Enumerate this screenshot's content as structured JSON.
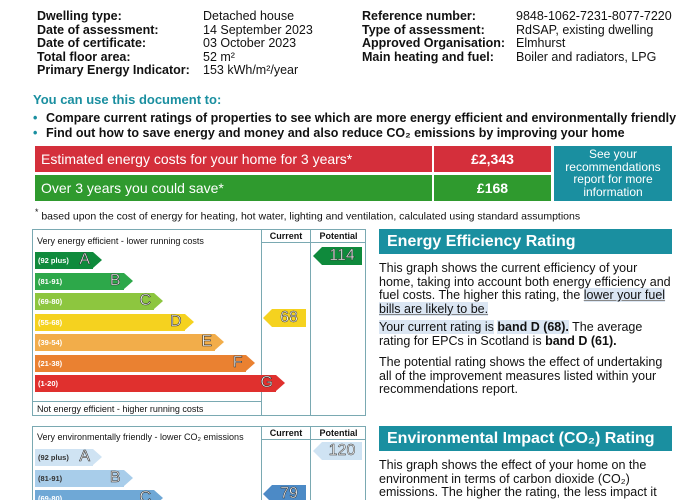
{
  "details_left": [
    {
      "label": "Dwelling type:",
      "value": "Detached house"
    },
    {
      "label": "Date of assessment:",
      "value": "14 September 2023"
    },
    {
      "label": "Date of certificate:",
      "value": "03 October 2023"
    },
    {
      "label": "Total floor area:",
      "value": "52 m²"
    },
    {
      "label": "Primary Energy Indicator:",
      "value": "153 kWh/m²/year"
    }
  ],
  "details_right": [
    {
      "label": "Reference number:",
      "value": "9848-1062-7231-8077-7220"
    },
    {
      "label": "Type of assessment:",
      "value": "RdSAP, existing dwelling"
    },
    {
      "label": "Approved Organisation:",
      "value": "Elmhurst"
    },
    {
      "label": "Main heating and fuel:",
      "value": "Boiler and radiators, LPG"
    }
  ],
  "use_heading": "You can use this document to:",
  "bullets": [
    "Compare current ratings of properties to see which are more energy efficient and environmentally friendly",
    "Find out how to save energy and money and also reduce CO₂ emissions by improving your home"
  ],
  "costs": {
    "estimated_label": "Estimated energy costs for your home for 3 years*",
    "estimated_value": "£2,343",
    "save_label": "Over 3 years you could save*",
    "save_value": "£168",
    "see_box": "See your recommendations report for more information",
    "footnote_star": "*",
    "footnote": "based upon the cost of energy for heating, hot water, lighting and ventilation, calculated using standard assumptions"
  },
  "efficiency_chart": {
    "top_label": "Very energy efficient - lower running costs",
    "bottom_label": "Not energy efficient - higher running costs",
    "current_header": "Current",
    "potential_header": "Potential",
    "bands": [
      {
        "range": "(92 plus)",
        "letter": "A",
        "color": "#0f8a3c"
      },
      {
        "range": "(81-91)",
        "letter": "B",
        "color": "#2da84a"
      },
      {
        "range": "(69-80)",
        "letter": "C",
        "color": "#8dc63f"
      },
      {
        "range": "(55-68)",
        "letter": "D",
        "color": "#f5d21f"
      },
      {
        "range": "(39-54)",
        "letter": "E",
        "color": "#f2ad4a"
      },
      {
        "range": "(21-38)",
        "letter": "F",
        "color": "#ea8131"
      },
      {
        "range": "(1-20)",
        "letter": "G",
        "color": "#e0302e"
      }
    ],
    "current_value": "68",
    "current_color": "#f5d21f",
    "potential_value": "114",
    "potential_color": "#0f8a3c"
  },
  "efficiency_panel": {
    "title": "Energy Efficiency Rating",
    "para1_a": "This graph shows the current efficiency of your home, taking into account both energy efficiency and fuel costs. The higher this rating, the",
    "para1_b": "lower your fuel bills are likely to be.",
    "para2_a": "Your current rating is",
    "para2_b": "band D (68).",
    "para2_c": "The average rating for EPCs in Scotland is",
    "para2_d": "band D (61).",
    "para3": "The potential rating shows the effect of undertaking all of the improvement measures listed within your recommendations report."
  },
  "environment_chart": {
    "top_label": "Very environmentally friendly - lower CO₂ emissions",
    "current_header": "Current",
    "potential_header": "Potential",
    "bands": [
      {
        "range": "(92 plus)",
        "letter": "A",
        "color": "#cfe3f3"
      },
      {
        "range": "(81-91)",
        "letter": "B",
        "color": "#a8cdea"
      },
      {
        "range": "(69-80)",
        "letter": "C",
        "color": "#6fa8d6"
      }
    ],
    "current_value": "79",
    "current_color": "#4c8ac6",
    "potential_value": "120",
    "potential_color": "#cfe3f3"
  },
  "environment_panel": {
    "title": "Environmental Impact (CO₂) Rating",
    "para1": "This graph shows the effect of your home on the environment in terms of carbon dioxide (CO₂) emissions. The higher the rating, the less impact it has"
  }
}
